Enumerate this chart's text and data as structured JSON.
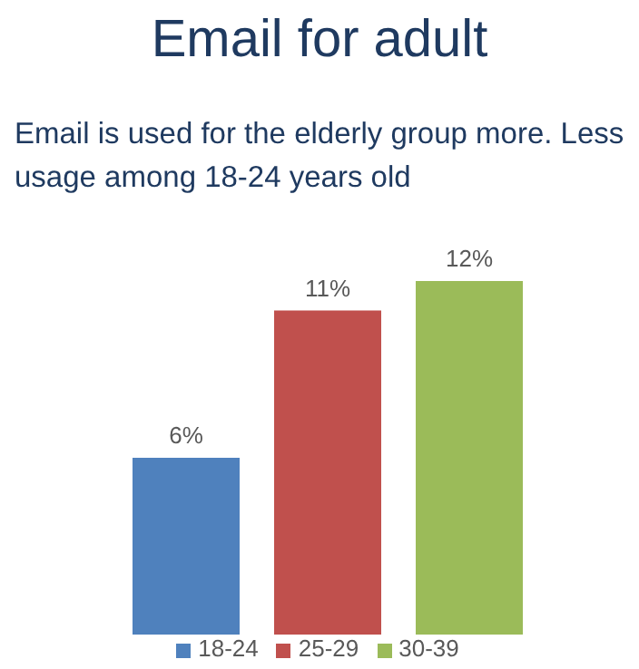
{
  "chart_data": {
    "type": "bar",
    "title": "Email for adult",
    "subtitle": "Email is used for the elderly group more. Less usage among 18-24 years old",
    "categories": [
      null
    ],
    "legend": "bottom",
    "series": [
      {
        "name": "18-24",
        "color": "#4f81bd",
        "values": [
          6
        ],
        "value_labels": [
          "6%"
        ]
      },
      {
        "name": "25-29",
        "color": "#c0504d",
        "values": [
          11
        ],
        "value_labels": [
          "11%"
        ]
      },
      {
        "name": "30-39",
        "color": "#9bbb59",
        "values": [
          12
        ],
        "value_labels": [
          "12%"
        ]
      }
    ]
  }
}
